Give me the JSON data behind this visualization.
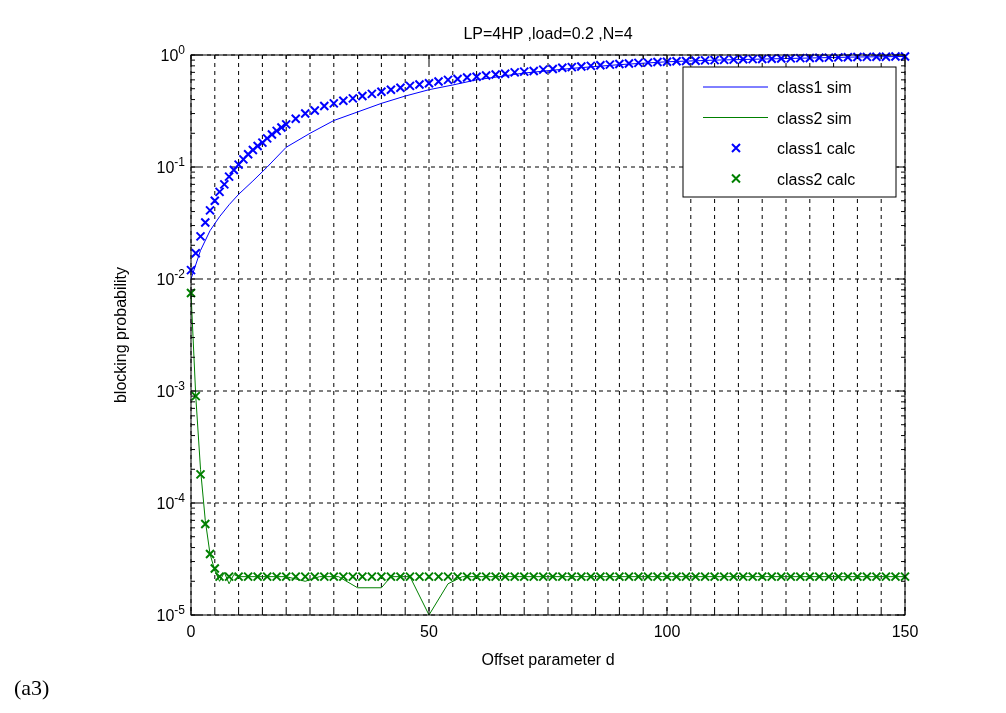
{
  "chart_data": {
    "type": "line",
    "title": "LP=4HP ,load=0.2 ,N=4",
    "xlabel": "Offset parameter d",
    "ylabel": "blocking probability",
    "annotations": [
      "(a3)"
    ],
    "log": "y",
    "grid": true,
    "legend": "top right",
    "xlim": [
      0,
      150
    ],
    "xticks": [
      0,
      {
        "value": 5,
        "label": null
      },
      {
        "value": 10,
        "label": null
      },
      {
        "value": 15,
        "label": null
      },
      {
        "value": 20,
        "label": null
      },
      {
        "value": 25,
        "label": null
      },
      {
        "value": 30,
        "label": null
      },
      {
        "value": 35,
        "label": null
      },
      {
        "value": 40,
        "label": null
      },
      {
        "value": 45,
        "label": null
      },
      50,
      {
        "value": 55,
        "label": null
      },
      {
        "value": 60,
        "label": null
      },
      {
        "value": 65,
        "label": null
      },
      {
        "value": 70,
        "label": null
      },
      {
        "value": 75,
        "label": null
      },
      {
        "value": 80,
        "label": null
      },
      {
        "value": 85,
        "label": null
      },
      {
        "value": 90,
        "label": null
      },
      {
        "value": 95,
        "label": null
      },
      100,
      {
        "value": 105,
        "label": null
      },
      {
        "value": 110,
        "label": null
      },
      {
        "value": 115,
        "label": null
      },
      {
        "value": 120,
        "label": null
      },
      {
        "value": 125,
        "label": null
      },
      {
        "value": 130,
        "label": null
      },
      {
        "value": 135,
        "label": null
      },
      {
        "value": 140,
        "label": null
      },
      {
        "value": 145,
        "label": null
      },
      150
    ],
    "ylim": [
      1e-05,
      1
    ],
    "yticks": [
      {
        "value": 1e-05,
        "label": "10$^{-5}$"
      },
      {
        "value": 0.0001,
        "label": "10$^{-4}$"
      },
      {
        "value": 0.001,
        "label": "10$^{-3}$"
      },
      {
        "value": 0.01,
        "label": "10$^{-2}$"
      },
      {
        "value": 0.1,
        "label": "10$^{-1}$"
      },
      {
        "value": 1,
        "label": "10$^{0}$"
      }
    ],
    "series": [
      {
        "name": "class1 sim",
        "type": "line",
        "marker": "none",
        "line_style": "solid",
        "color": "#0000ff",
        "x": [
          0,
          2,
          4,
          6,
          8,
          10,
          13,
          16,
          20,
          25,
          30,
          35,
          40,
          45,
          50,
          55,
          60,
          70,
          80,
          90,
          100,
          110,
          120,
          130,
          140,
          150
        ],
        "values": [
          0.01,
          0.018,
          0.027,
          0.036,
          0.046,
          0.057,
          0.075,
          0.1,
          0.15,
          0.2,
          0.26,
          0.31,
          0.37,
          0.43,
          0.49,
          0.54,
          0.6,
          0.69,
          0.76,
          0.82,
          0.87,
          0.9,
          0.92,
          0.94,
          0.96,
          0.97
        ]
      },
      {
        "name": "class2 sim",
        "type": "line",
        "marker": "none",
        "line_style": "solid",
        "color": "#008000",
        "x": [
          0,
          1,
          2,
          3,
          4,
          5,
          6,
          7,
          8,
          9,
          10,
          20,
          24,
          27,
          31,
          35,
          40,
          42,
          46,
          50,
          54,
          57,
          150
        ],
        "values": [
          0.0075,
          0.0009,
          0.0002,
          7e-05,
          3.5e-05,
          2.5e-05,
          2e-05,
          2.4e-05,
          1.9e-05,
          2.3e-05,
          2.2e-05,
          2.2e-05,
          2e-05,
          2.2e-05,
          2.2e-05,
          1.75e-05,
          1.75e-05,
          2.2e-05,
          2.2e-05,
          1e-05,
          1.9e-05,
          2.2e-05,
          2.2e-05
        ]
      },
      {
        "name": "class1 calc",
        "type": "scatter",
        "marker": "cross",
        "color": "#0000ff",
        "x": [
          0,
          1,
          2,
          3,
          4,
          5,
          6,
          7,
          8,
          9,
          10,
          11,
          12,
          13,
          14,
          15,
          16,
          17,
          18,
          19,
          20,
          22,
          24,
          26,
          28,
          30,
          32,
          34,
          36,
          38,
          40,
          42,
          44,
          46,
          48,
          50,
          52,
          54,
          56,
          58,
          60,
          62,
          64,
          66,
          68,
          70,
          72,
          74,
          76,
          78,
          80,
          82,
          84,
          86,
          88,
          90,
          92,
          94,
          96,
          98,
          100,
          102,
          104,
          106,
          108,
          110,
          112,
          114,
          116,
          118,
          120,
          122,
          124,
          126,
          128,
          130,
          132,
          134,
          136,
          138,
          140,
          142,
          144,
          146,
          148,
          150
        ],
        "values": [
          0.012,
          0.017,
          0.024,
          0.032,
          0.041,
          0.05,
          0.06,
          0.07,
          0.082,
          0.094,
          0.105,
          0.117,
          0.13,
          0.142,
          0.154,
          0.165,
          0.18,
          0.195,
          0.21,
          0.225,
          0.24,
          0.27,
          0.3,
          0.32,
          0.35,
          0.37,
          0.39,
          0.41,
          0.43,
          0.45,
          0.47,
          0.49,
          0.51,
          0.53,
          0.545,
          0.56,
          0.58,
          0.6,
          0.61,
          0.63,
          0.64,
          0.655,
          0.67,
          0.68,
          0.7,
          0.71,
          0.72,
          0.74,
          0.75,
          0.77,
          0.78,
          0.79,
          0.8,
          0.81,
          0.82,
          0.83,
          0.84,
          0.85,
          0.855,
          0.865,
          0.87,
          0.88,
          0.885,
          0.89,
          0.895,
          0.9,
          0.905,
          0.91,
          0.915,
          0.918,
          0.92,
          0.925,
          0.93,
          0.933,
          0.937,
          0.94,
          0.944,
          0.948,
          0.952,
          0.955,
          0.96,
          0.962,
          0.964,
          0.966,
          0.968,
          0.97
        ]
      },
      {
        "name": "class2 calc",
        "type": "scatter",
        "marker": "cross",
        "color": "#008000",
        "x": [
          0,
          1,
          2,
          3,
          4,
          5,
          6,
          8,
          10,
          12,
          14,
          16,
          18,
          20,
          22,
          24,
          26,
          28,
          30,
          32,
          34,
          36,
          38,
          40,
          42,
          44,
          46,
          48,
          50,
          52,
          54,
          56,
          58,
          60,
          62,
          64,
          66,
          68,
          70,
          72,
          74,
          76,
          78,
          80,
          82,
          84,
          86,
          88,
          90,
          92,
          94,
          96,
          98,
          100,
          102,
          104,
          106,
          108,
          110,
          112,
          114,
          116,
          118,
          120,
          122,
          124,
          126,
          128,
          130,
          132,
          134,
          136,
          138,
          140,
          142,
          144,
          146,
          148,
          150
        ],
        "values": [
          0.0075,
          0.0009,
          0.00018,
          6.5e-05,
          3.5e-05,
          2.6e-05,
          2.2e-05,
          2.2e-05,
          2.2e-05,
          2.2e-05,
          2.2e-05,
          2.2e-05,
          2.2e-05,
          2.2e-05,
          2.2e-05,
          2.2e-05,
          2.2e-05,
          2.2e-05,
          2.2e-05,
          2.2e-05,
          2.2e-05,
          2.2e-05,
          2.2e-05,
          2.2e-05,
          2.2e-05,
          2.2e-05,
          2.2e-05,
          2.2e-05,
          2.2e-05,
          2.2e-05,
          2.2e-05,
          2.2e-05,
          2.2e-05,
          2.2e-05,
          2.2e-05,
          2.2e-05,
          2.2e-05,
          2.2e-05,
          2.2e-05,
          2.2e-05,
          2.2e-05,
          2.2e-05,
          2.2e-05,
          2.2e-05,
          2.2e-05,
          2.2e-05,
          2.2e-05,
          2.2e-05,
          2.2e-05,
          2.2e-05,
          2.2e-05,
          2.2e-05,
          2.2e-05,
          2.2e-05,
          2.2e-05,
          2.2e-05,
          2.2e-05,
          2.2e-05,
          2.2e-05,
          2.2e-05,
          2.2e-05,
          2.2e-05,
          2.2e-05,
          2.2e-05,
          2.2e-05,
          2.2e-05,
          2.2e-05,
          2.2e-05,
          2.2e-05,
          2.2e-05,
          2.2e-05,
          2.2e-05,
          2.2e-05,
          2.2e-05,
          2.2e-05,
          2.2e-05,
          2.2e-05,
          2.2e-05,
          2.2e-05
        ]
      }
    ]
  }
}
